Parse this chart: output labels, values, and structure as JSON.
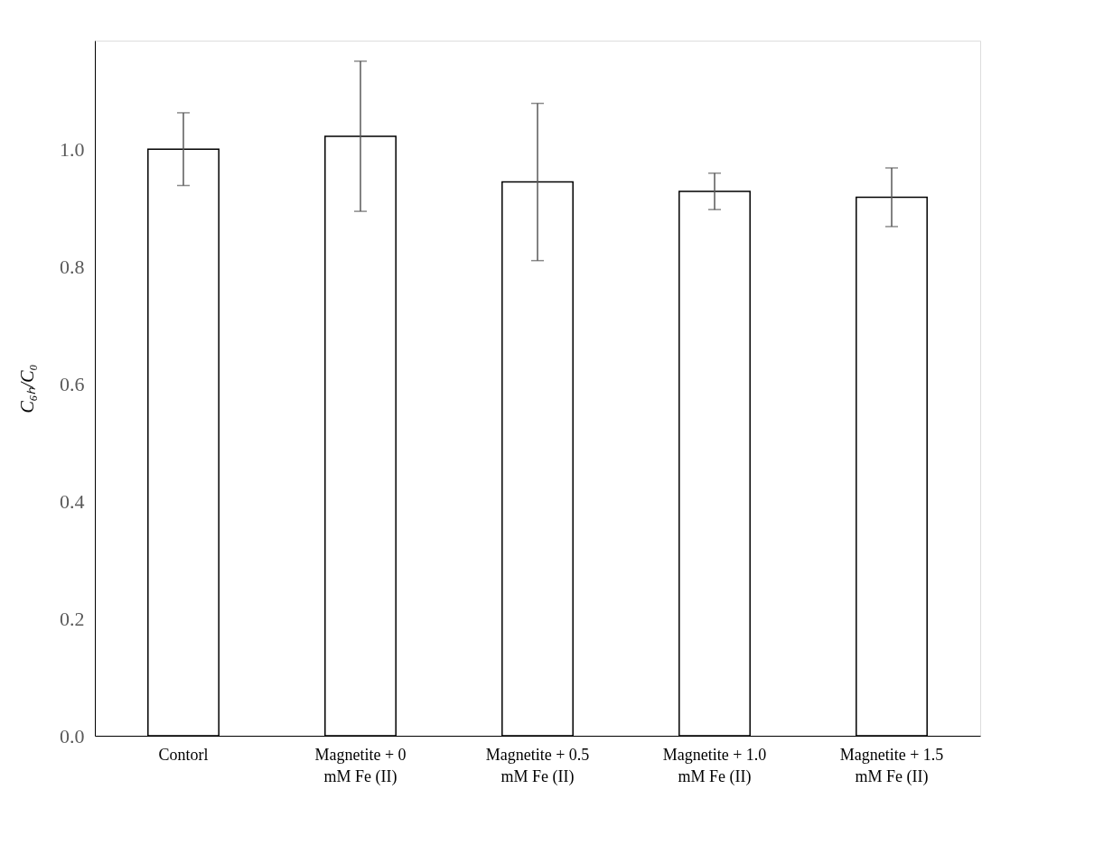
{
  "chart_data": {
    "type": "bar",
    "categories": [
      "Contorl",
      "Magnetite + 0\nmM Fe (II)",
      "Magnetite + 0.5\nmM Fe (II)",
      "Magnetite + 1.0\nmM Fe (II)",
      "Magnetite + 1.5\nmM Fe (II)"
    ],
    "values": [
      1.0,
      1.022,
      0.944,
      0.928,
      0.918
    ],
    "errors": [
      0.062,
      0.128,
      0.134,
      0.031,
      0.05
    ],
    "color": "#ffffff",
    "ylabel": "C₆ₕ/C₀",
    "ylim": [
      0,
      1.185
    ],
    "yticks": [
      {
        "value": 0,
        "label": "0.0"
      },
      {
        "value": 0.2,
        "label": "0.2"
      },
      {
        "value": 0.4,
        "label": "0.4"
      },
      {
        "value": 0.6,
        "label": "0.6"
      },
      {
        "value": 0.8,
        "label": "0.8"
      },
      {
        "value": 1.0,
        "label": "1.0"
      }
    ],
    "grid": false
  }
}
